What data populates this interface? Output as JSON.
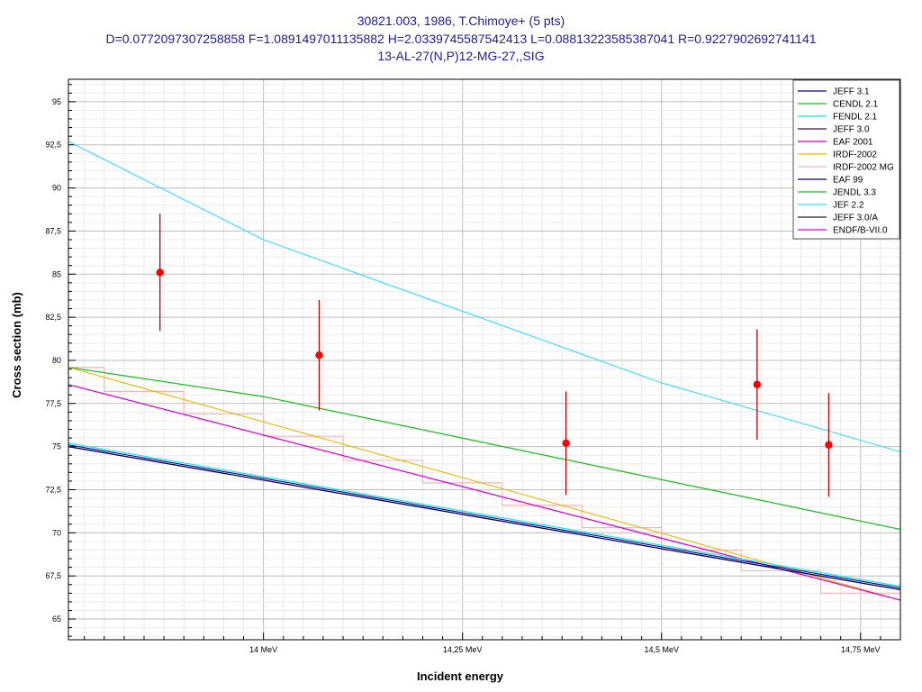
{
  "chart_data": {
    "type": "line",
    "title": "30821.003, 1986, T.Chimoye+ (5 pts)",
    "subtitle": "D=0.0772097307258858 F=1.0891497011135882 H=2.0339745587542413 L=0.08813223585387041 R=0.9227902692741141",
    "reaction": "13-AL-27(N,P)12-MG-27,,SIG",
    "xlabel": "Incident energy",
    "ylabel": "Cross section (mb)",
    "xlim": [
      13.755,
      14.8
    ],
    "ylim": [
      63.8,
      96.3
    ],
    "x_ticks": [
      {
        "value": 14.0,
        "label": "14 MeV"
      },
      {
        "value": 14.25,
        "label": "14,25 MeV"
      },
      {
        "value": 14.5,
        "label": "14,5 MeV"
      },
      {
        "value": 14.75,
        "label": "14,75 MeV"
      }
    ],
    "y_ticks": [
      {
        "value": 65,
        "label": "65"
      },
      {
        "value": 67.5,
        "label": "67,5"
      },
      {
        "value": 70,
        "label": "70"
      },
      {
        "value": 72.5,
        "label": "72,5"
      },
      {
        "value": 75,
        "label": "75"
      },
      {
        "value": 77.5,
        "label": "77,5"
      },
      {
        "value": 80,
        "label": "80"
      },
      {
        "value": 82.5,
        "label": "82,5"
      },
      {
        "value": 85,
        "label": "85"
      },
      {
        "value": 87.5,
        "label": "87,5"
      },
      {
        "value": 90,
        "label": "90"
      },
      {
        "value": 92.5,
        "label": "92,5"
      },
      {
        "value": 95,
        "label": "95"
      }
    ],
    "grid": true,
    "legend_position": "top-right",
    "series": [
      {
        "name": "JEFF 3.1",
        "color": "#00008b",
        "x": [
          13.755,
          14.8
        ],
        "y": [
          75.1,
          66.8
        ]
      },
      {
        "name": "CENDL 2.1",
        "color": "#00cc00",
        "x": [
          13.755,
          14.0,
          14.8
        ],
        "y": [
          79.6,
          77.9,
          70.2
        ]
      },
      {
        "name": "FENDL 2.1",
        "color": "#00e5ee",
        "x": [
          13.755,
          14.8
        ],
        "y": [
          75.2,
          66.9
        ]
      },
      {
        "name": "JEFF 3.0",
        "color": "#3d0f3d",
        "x": [
          13.755,
          14.8
        ],
        "y": [
          75.0,
          66.7
        ]
      },
      {
        "name": "EAF 2001",
        "color": "#cc00cc",
        "x": [
          13.755,
          14.8
        ],
        "y": [
          78.6,
          66.1
        ]
      },
      {
        "name": "IRDF-2002",
        "color": "#e6b800",
        "x": [
          13.755,
          14.8
        ],
        "y": [
          79.6,
          66.1
        ],
        "style": "line"
      },
      {
        "name": "IRDF-2002 MG",
        "color": "#f2b6b6",
        "style": "step",
        "steps": [
          [
            13.755,
            13.8,
            79.6
          ],
          [
            13.8,
            13.9,
            78.2
          ],
          [
            13.9,
            14.0,
            76.9
          ],
          [
            14.0,
            14.1,
            75.6
          ],
          [
            14.1,
            14.2,
            74.2
          ],
          [
            14.2,
            14.3,
            72.9
          ],
          [
            14.3,
            14.4,
            71.6
          ],
          [
            14.4,
            14.5,
            70.3
          ],
          [
            14.5,
            14.6,
            69.0
          ],
          [
            14.6,
            14.7,
            67.8
          ],
          [
            14.7,
            14.8,
            66.5
          ]
        ]
      },
      {
        "name": "EAF 99",
        "color": "#000066",
        "x": [
          13.755,
          14.8
        ],
        "y": [
          75.0,
          66.7
        ]
      },
      {
        "name": "JENDL 3.3",
        "color": "#22bb22",
        "x": [
          13.755,
          14.0,
          14.8
        ],
        "y": [
          79.6,
          77.9,
          70.2
        ]
      },
      {
        "name": "JEF 2.2",
        "color": "#33ddff",
        "x": [
          13.755,
          14.0,
          14.5,
          14.8
        ],
        "y": [
          92.7,
          87.0,
          78.7,
          74.7
        ]
      },
      {
        "name": "JEFF 3.0/A",
        "color": "#222222",
        "x": [
          13.755,
          14.8
        ],
        "y": [
          75.0,
          66.7
        ]
      },
      {
        "name": "ENDF/B-VII.0",
        "color": "#dd00dd",
        "x": [
          13.755,
          14.8
        ],
        "y": [
          78.6,
          66.1
        ]
      }
    ],
    "experimental_points": {
      "color": "#ff0000",
      "errorbar_color": "#b30000",
      "points": [
        {
          "x": 13.87,
          "y": 85.1,
          "err": 3.4
        },
        {
          "x": 14.07,
          "y": 80.3,
          "err": 3.2
        },
        {
          "x": 14.38,
          "y": 75.2,
          "err": 3.0
        },
        {
          "x": 14.62,
          "y": 78.6,
          "err": 3.2
        },
        {
          "x": 14.71,
          "y": 75.1,
          "err": 3.0
        }
      ]
    }
  }
}
